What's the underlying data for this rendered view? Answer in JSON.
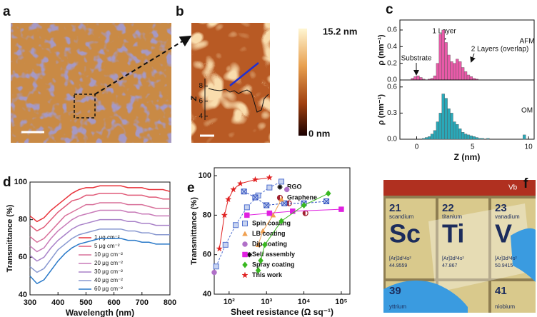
{
  "panel_labels": [
    "a",
    "b",
    "c",
    "d",
    "e",
    "f"
  ],
  "panel_b": {
    "colorbar_max": "15.2 nm",
    "colorbar_min": "0 nm",
    "inset": {
      "ylabel": "Z",
      "ylim": [
        3.5,
        9
      ],
      "yticks": [
        4,
        6,
        8
      ]
    }
  },
  "panel_f": {
    "column_header": "Vb",
    "tiles": [
      {
        "number": "21",
        "symbol": "Sc",
        "name": "scandium",
        "config": "[Ar]3d¹4s²",
        "mass": "44.9559"
      },
      {
        "number": "22",
        "symbol": "Ti",
        "name": "titanium",
        "config": "[Ar]3d²4s²",
        "mass": "47.867"
      },
      {
        "number": "23",
        "symbol": "V",
        "name": "vanadium",
        "config": "[Ar]3d³4s²",
        "mass": "50.9415"
      },
      {
        "number": "39",
        "name": "yttrium"
      },
      {
        "number": "41",
        "name": "niobium"
      }
    ]
  },
  "chart_data": [
    {
      "type": "histogram",
      "ylabel": "ρ (nm⁻¹)",
      "color": "#e85aa8",
      "annotations": [
        "Substrate",
        "1 Layer",
        "2 Layers (overlap)",
        "AFM"
      ],
      "bins": [
        -0.5,
        -0.25,
        0,
        0.25,
        0.5,
        0.75,
        1,
        1.25,
        1.5,
        1.75,
        2,
        2.25,
        2.5,
        2.75,
        3,
        3.25,
        3.5,
        3.75,
        4,
        4.25,
        4.5,
        4.75,
        5,
        5.25,
        5.5
      ],
      "values": [
        0.02,
        0.04,
        0.05,
        0.03,
        0.01,
        0,
        0.01,
        0.02,
        0.05,
        0.2,
        0.55,
        0.6,
        0.45,
        0.3,
        0.22,
        0.2,
        0.25,
        0.22,
        0.15,
        0.1,
        0.06,
        0.04,
        0.02,
        0.01
      ],
      "xlim": [
        -1.5,
        10.5
      ],
      "ylim": [
        0,
        0.72
      ],
      "yticks": [
        {
          "value": 0,
          "label": "0.0"
        },
        {
          "value": 0.2,
          "label": "0.2"
        },
        {
          "value": 0.4,
          "label": "0.4"
        },
        {
          "value": 0.6,
          "label": "0.6"
        }
      ]
    },
    {
      "type": "histogram",
      "ylabel": "ρ (nm⁻¹)",
      "xlabel": "Z (nm)",
      "color": "#2aa8b8",
      "annotations": [
        "OM"
      ],
      "bins": [
        0.5,
        0.75,
        1,
        1.25,
        1.5,
        1.75,
        2,
        2.25,
        2.5,
        2.75,
        3,
        3.25,
        3.5,
        3.75,
        4,
        4.25,
        4.5,
        4.75,
        5,
        5.25,
        5.5,
        5.75,
        6,
        6.25,
        6.5,
        6.75,
        7,
        7.25,
        7.5,
        7.75,
        8,
        8.25,
        8.5,
        8.75,
        9,
        9.25,
        9.5,
        9.75,
        10
      ],
      "values": [
        0.01,
        0.02,
        0.03,
        0.06,
        0.1,
        0.2,
        0.3,
        0.52,
        0.47,
        0.35,
        0.3,
        0.2,
        0.17,
        0.12,
        0.08,
        0.06,
        0.05,
        0.04,
        0.03,
        0.02,
        0.01,
        0.01,
        0,
        0.01,
        0,
        0,
        0,
        0,
        0,
        0,
        0,
        0,
        0,
        0,
        0,
        0,
        0.05,
        0
      ],
      "xlim": [
        -1.5,
        10.5
      ],
      "ylim": [
        0,
        0.68
      ],
      "xticks": [
        0,
        5,
        10
      ],
      "yticks": [
        {
          "value": 0,
          "label": "0.0"
        },
        {
          "value": 0.3,
          "label": "0.3"
        },
        {
          "value": 0.6,
          "label": "0.6"
        }
      ]
    },
    {
      "type": "line",
      "xlabel": "Wavelength (nm)",
      "ylabel": "Transmittance (%)",
      "legend": "lower center",
      "x": [
        300,
        325,
        350,
        375,
        400,
        425,
        450,
        475,
        500,
        525,
        550,
        575,
        600,
        625,
        650,
        675,
        700,
        725,
        750,
        775,
        800
      ],
      "xlim": [
        300,
        800
      ],
      "ylim": [
        40,
        100
      ],
      "xticks": [
        300,
        400,
        500,
        600,
        700,
        800
      ],
      "yticks": [
        40,
        60,
        80,
        100
      ],
      "series": [
        {
          "name": "1 μg cm⁻²",
          "color": "#e8323a",
          "values": [
            82,
            79,
            81,
            85,
            88,
            91,
            94,
            96,
            97,
            97,
            98,
            98,
            98,
            98,
            97,
            97,
            97,
            96,
            96,
            96,
            95
          ]
        },
        {
          "name": "5 μg cm⁻²",
          "color": "#e05a78",
          "values": [
            77,
            74,
            76,
            80,
            84,
            87,
            90,
            91,
            93,
            93,
            94,
            94,
            94,
            94,
            93,
            93,
            93,
            92,
            92,
            91,
            91
          ]
        },
        {
          "name": "10 μg cm⁻²",
          "color": "#d8709a",
          "values": [
            71,
            68,
            70,
            74,
            78,
            82,
            84,
            86,
            88,
            88,
            89,
            89,
            89,
            89,
            88,
            88,
            88,
            87,
            86,
            86,
            86
          ]
        },
        {
          "name": "20 μg cm⁻²",
          "color": "#c87ab8",
          "values": [
            66,
            63,
            65,
            70,
            74,
            77,
            80,
            82,
            83,
            84,
            85,
            85,
            85,
            85,
            84,
            84,
            83,
            83,
            82,
            82,
            82
          ]
        },
        {
          "name": "30 μg cm⁻²",
          "color": "#a880c8",
          "values": [
            61,
            58,
            60,
            65,
            69,
            72,
            75,
            77,
            78,
            79,
            80,
            80,
            80,
            80,
            79,
            79,
            78,
            78,
            77,
            77,
            77
          ]
        },
        {
          "name": "40 μg cm⁻²",
          "color": "#8898d0",
          "values": [
            55,
            52,
            54,
            59,
            64,
            67,
            70,
            72,
            73,
            74,
            75,
            75,
            75,
            75,
            74,
            74,
            73,
            73,
            72,
            72,
            72
          ]
        },
        {
          "name": "60 μg cm⁻²",
          "color": "#2878c8",
          "values": [
            50,
            46,
            48,
            53,
            58,
            62,
            65,
            67,
            68,
            69,
            70,
            70,
            70,
            70,
            69,
            69,
            68,
            68,
            67,
            67,
            67
          ]
        }
      ]
    },
    {
      "type": "scatter",
      "xlabel": "Sheet resistance  (Ω sq⁻¹)",
      "ylabel": "Transmittance (%)",
      "xscale": "log",
      "legend": "lower right",
      "xlim": [
        40,
        170000
      ],
      "ylim": [
        40,
        104
      ],
      "xticks": [
        {
          "value": 100,
          "label": "10²"
        },
        {
          "value": 1000,
          "label": "10³"
        },
        {
          "value": 10000,
          "label": "10⁴"
        },
        {
          "value": 100000,
          "label": "10⁵"
        }
      ],
      "yticks": [
        40,
        60,
        80,
        100
      ],
      "series": [
        {
          "name": "RGO",
          "color": "#111111",
          "marker": "asterisk",
          "x": [
            350
          ],
          "values": [
            60
          ]
        },
        {
          "name": "Graphene",
          "color": "#a02030",
          "marker": "half-circle",
          "x": [
            4000,
            11000
          ],
          "values": [
            86,
            81
          ]
        },
        {
          "name": "Spin coating",
          "color": "#5070d0",
          "marker": "square",
          "line": "dashed",
          "x": [
            45,
            80,
            150,
            300,
            600,
            1200,
            2500
          ],
          "values": [
            54,
            65,
            75,
            84,
            90,
            94,
            97
          ]
        },
        {
          "color": "#3050c0",
          "marker": "square-x",
          "line": "dashed",
          "x": [
            250,
            500,
            1000,
            3000,
            10000,
            40000
          ],
          "values": [
            92,
            89,
            85,
            86,
            86,
            87
          ]
        },
        {
          "name": "LB coating",
          "color": "#f0a050",
          "marker": "triangle",
          "line": "solid",
          "x": [
            600,
            800,
            1500,
            2500
          ],
          "values": [
            65,
            72,
            80,
            88
          ]
        },
        {
          "name": "Dip coating",
          "color": "#b070c8",
          "marker": "circle",
          "x": [
            40,
            3500
          ],
          "values": [
            51,
            93
          ]
        },
        {
          "name": "Self assembly",
          "color": "#e020e0",
          "marker": "square",
          "line": "solid",
          "x": [
            300,
            1200,
            5000,
            100000
          ],
          "values": [
            80,
            81,
            82,
            83
          ]
        },
        {
          "name": "Spray coating",
          "color": "#38b820",
          "marker": "diamond",
          "line": "solid",
          "x": [
            600,
            700,
            900,
            2500,
            10000,
            45000
          ],
          "values": [
            52,
            57,
            65,
            77,
            85,
            91
          ]
        },
        {
          "name": "This work",
          "color": "#e02020",
          "marker": "star",
          "line": "solid",
          "x": [
            55,
            75,
            95,
            130,
            200,
            500,
            1200
          ],
          "values": [
            63,
            80,
            88,
            93,
            96,
            98,
            99
          ]
        }
      ]
    }
  ]
}
